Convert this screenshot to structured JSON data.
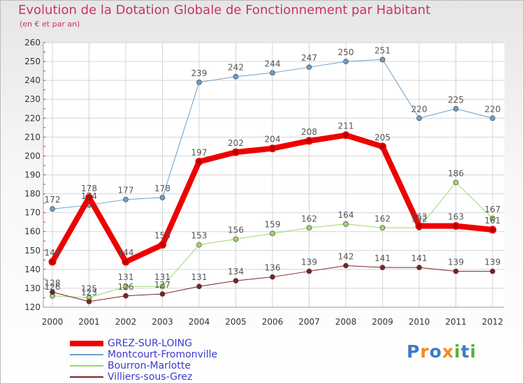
{
  "title": "Evolution de la Dotation Globale de Fonctionnement par Habitant",
  "subtitle": "(en € et par an)",
  "logo": {
    "letters": [
      "P",
      "r",
      "o",
      "x",
      "i",
      "t",
      "i"
    ],
    "colors": [
      "#3d7bc4",
      "#f08a1c",
      "#3d7bc4",
      "#f08a1c",
      "#5cb13a",
      "#3d7bc4",
      "#5cb13a"
    ]
  },
  "chart_data": {
    "type": "line",
    "x": [
      "2000",
      "2001",
      "2002",
      "2003",
      "2004",
      "2005",
      "2006",
      "2007",
      "2008",
      "2009",
      "2010",
      "2011",
      "2012"
    ],
    "ylim": [
      120,
      260
    ],
    "yticks": [
      120,
      130,
      140,
      150,
      160,
      170,
      180,
      190,
      200,
      210,
      220,
      230,
      240,
      250,
      260
    ],
    "grid": true,
    "series": [
      {
        "name": "Montcourt-Fromonville",
        "color": "#6a9fcb",
        "width": 1,
        "values": [
          172,
          174,
          177,
          178,
          239,
          242,
          244,
          247,
          250,
          251,
          220,
          225,
          220
        ],
        "labels": [
          "172",
          "174",
          "177",
          "178",
          "239",
          "242",
          "244",
          "247",
          "250",
          "251",
          "220",
          "225",
          "220"
        ]
      },
      {
        "name": "Bourron-Marlotte",
        "color": "#9fd66c",
        "width": 1,
        "values": [
          126,
          125,
          131,
          131,
          153,
          156,
          159,
          162,
          164,
          162,
          162,
          186,
          167
        ],
        "labels": [
          "126",
          "125",
          "131",
          "131",
          "153",
          "156",
          "159",
          "162",
          "164",
          "162",
          "162",
          "186",
          "167"
        ]
      },
      {
        "name": "Villiers-sous-Grez",
        "color": "#7a2323",
        "width": 1,
        "values": [
          128,
          123,
          126,
          127,
          131,
          134,
          136,
          139,
          142,
          141,
          141,
          139,
          139
        ],
        "labels": [
          "128",
          "123",
          "126",
          "127",
          "131",
          "134",
          "136",
          "139",
          "142",
          "141",
          "141",
          "139",
          "139"
        ]
      },
      {
        "name": "GREZ-SUR-LOING",
        "color": "#ee0000",
        "width": 8,
        "values": [
          144,
          178,
          144,
          153,
          197,
          202,
          204,
          208,
          211,
          205,
          163,
          163,
          161
        ],
        "labels": [
          "144",
          "178",
          "144",
          "153",
          "197",
          "202",
          "204",
          "208",
          "211",
          "205",
          "163",
          "163",
          "161"
        ]
      }
    ],
    "legend": [
      "GREZ-SUR-LOING",
      "Montcourt-Fromonville",
      "Bourron-Marlotte",
      "Villiers-sous-Grez"
    ]
  }
}
